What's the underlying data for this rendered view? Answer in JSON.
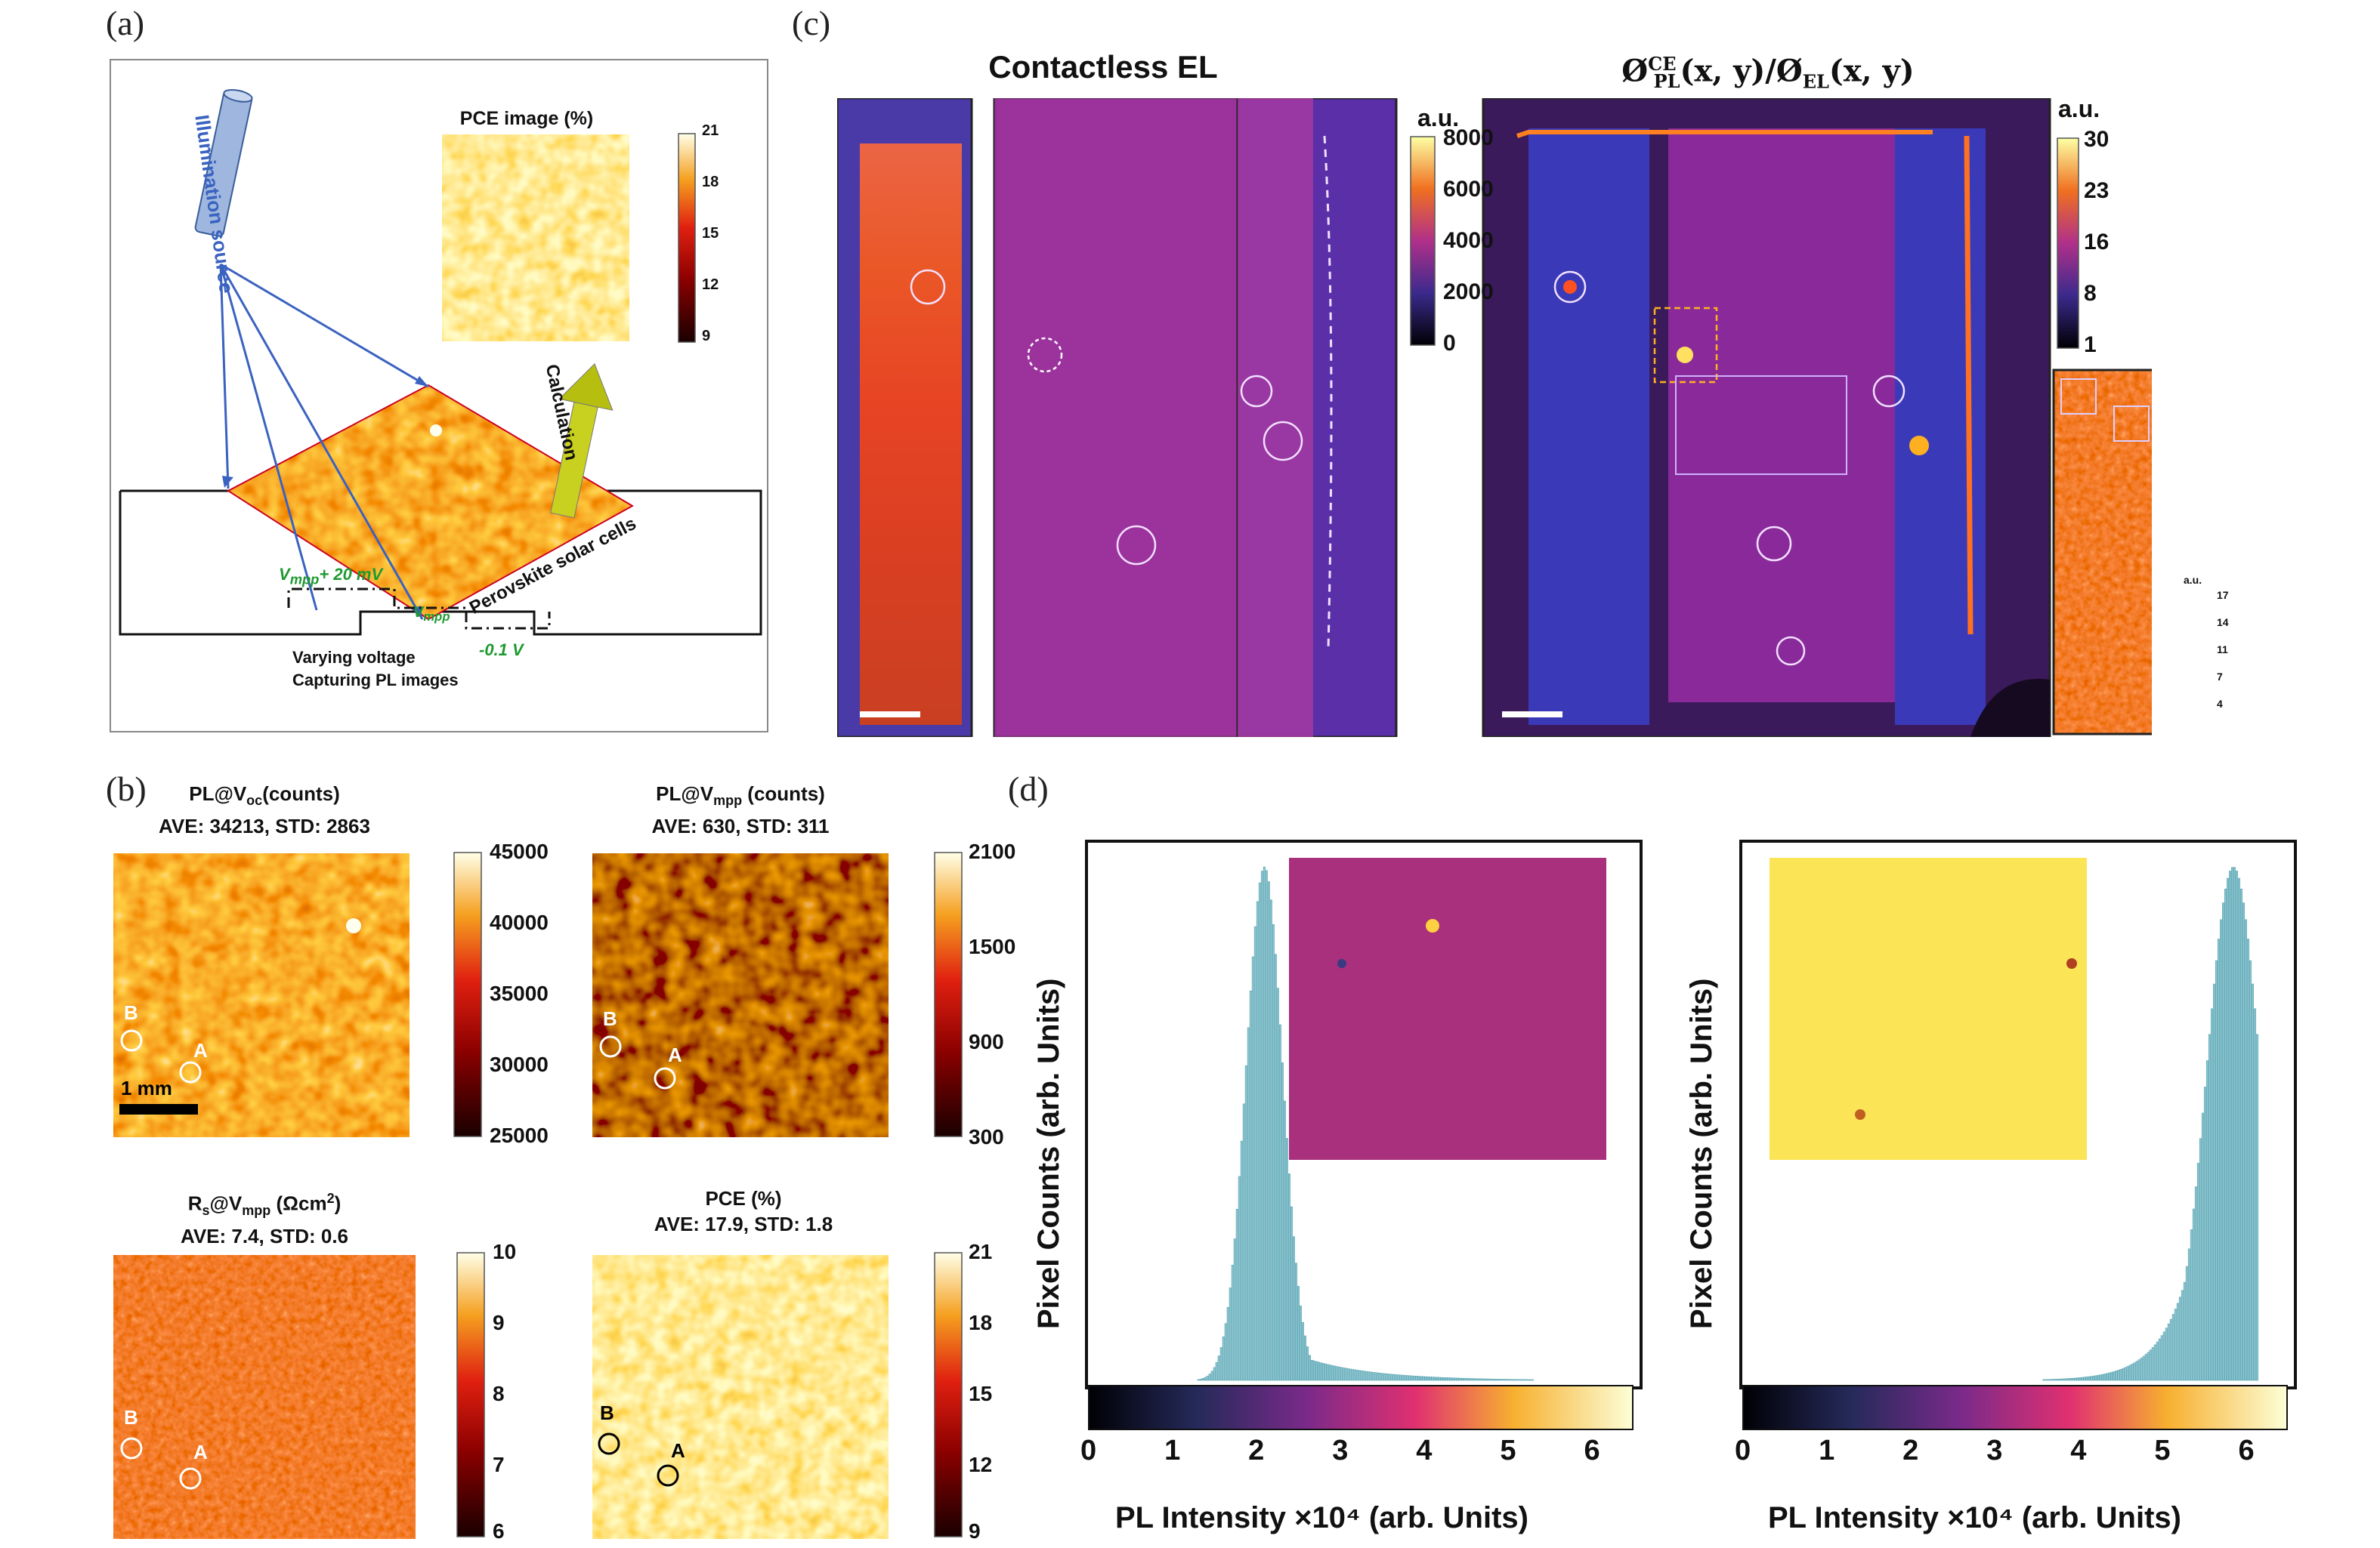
{
  "panel_labels": {
    "a": "(a)",
    "b": "(b)",
    "c": "(c)",
    "d": "(d)"
  },
  "panel_a": {
    "pce_title": "PCE image (%)",
    "pce_ticks": [
      "21",
      "18",
      "15",
      "12",
      "9"
    ],
    "source": "Illumination source",
    "calc": "Calculation",
    "cells": "Perovskite solar cells",
    "vmpp_plus": "V",
    "vmpp_plus_sub": "mpp",
    "vmpp_plus_tail": "+ 20 mV",
    "vmpp": "V",
    "vmpp_sub": "mpp",
    "neg": "-0.1 V",
    "varying": "Varying voltage",
    "capturing": "Capturing PL images"
  },
  "panel_b": {
    "maps": [
      {
        "title1_pre": "PL@V",
        "title1_sub": "oc",
        "title1_post": "(counts)",
        "title2": "AVE: 34213, STD: 2863",
        "ticks": [
          "45000",
          "40000",
          "35000",
          "30000",
          "25000"
        ],
        "scale": "1 mm"
      },
      {
        "title1_pre": "PL@V",
        "title1_sub": "mpp",
        "title1_post": " (counts)",
        "title2": "AVE: 630, STD: 311",
        "ticks": [
          "2100",
          "1500",
          "900",
          "300"
        ]
      },
      {
        "title1_pre": "R",
        "title1_sub": "s",
        "title1_mid": "@V",
        "title1_sub2": "mpp",
        "title1_post": " (Ωcm",
        "title1_sup": "2",
        "title1_end": ")",
        "title2": "AVE: 7.4, STD: 0.6",
        "ticks": [
          "10",
          "9",
          "8",
          "7",
          "6"
        ]
      },
      {
        "title1_pre": "PCE (%)",
        "title2": "AVE: 17.9, STD: 1.8",
        "ticks": [
          "21",
          "18",
          "15",
          "12",
          "9"
        ]
      }
    ],
    "pointA": "A",
    "pointB": "B"
  },
  "panel_c": {
    "el_title": "Contactless EL",
    "ratio_title": "Ø",
    "ratio_sup": "CE",
    "ratio_sub": "PL",
    "ratio_mid": "(x, y)/Ø",
    "ratio_sub2": "EL",
    "ratio_end": "(x, y)",
    "unit": "a.u.",
    "el_ticks": [
      "8000",
      "6000",
      "4000",
      "2000",
      "0"
    ],
    "ratio_ticks": [
      "30",
      "23",
      "16",
      "8",
      "1"
    ],
    "inset_unit": "a.u.",
    "inset_ticks": [
      "17",
      "14",
      "11",
      "7",
      "4"
    ]
  },
  "chart_data": [
    {
      "type": "bar",
      "xlabel": "PL Intensity ×10⁴ (arb. Units)",
      "ylabel": "Pixel Counts (arb. Units)",
      "xticks": [
        "0",
        "1",
        "2",
        "3",
        "4",
        "5",
        "6"
      ],
      "xlim": [
        0,
        6.5
      ],
      "peak_center": 2.1,
      "peak_width": 0.22
    },
    {
      "type": "bar",
      "xlabel": "PL Intensity ×10⁴ (arb. Units)",
      "ylabel": "Pixel Counts (arb. Units)",
      "xticks": [
        "0",
        "1",
        "2",
        "3",
        "4",
        "5",
        "6"
      ],
      "xlim": [
        0,
        6.5
      ],
      "peak_center": 5.85,
      "peak_width": 0.32
    }
  ]
}
